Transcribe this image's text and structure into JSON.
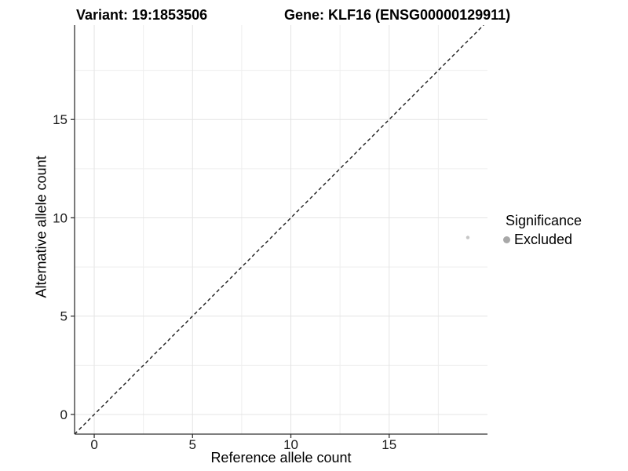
{
  "header": {
    "variant_title": "Variant: 19:1853506",
    "gene_title": "Gene: KLF16 (ENSG00000129911)"
  },
  "chart_data": {
    "type": "scatter",
    "xlabel": "Reference allele count",
    "ylabel": "Alternative allele count",
    "xlim": [
      -1,
      20
    ],
    "ylim": [
      -1,
      19.8
    ],
    "x_ticks": [
      0,
      5,
      10,
      15
    ],
    "y_ticks": [
      0,
      5,
      10,
      15
    ],
    "x_minor_ticks": [
      2.5,
      7.5,
      12.5,
      17.5
    ],
    "y_minor_ticks": [
      2.5,
      7.5,
      12.5,
      17.5
    ],
    "grid": true,
    "identity_line": {
      "style": "dashed",
      "from": [
        -1,
        -1
      ],
      "to": [
        20,
        20
      ]
    },
    "series": [
      {
        "name": "Excluded",
        "point_color": "#c6c6c6",
        "points": [
          {
            "x": 19,
            "y": 9
          }
        ]
      }
    ],
    "legend": {
      "title": "Significance",
      "position": "right",
      "items": [
        {
          "label": "Excluded",
          "color": "#a8a8a8"
        }
      ]
    }
  },
  "colors": {
    "axis_line": "#333333",
    "tick_mark": "#333333",
    "tick_label": "#1a1a1a",
    "grid_major": "#e4e4e4",
    "grid_minor": "#eeeeee",
    "identity_line": "#1a1a1a",
    "background": "#ffffff"
  }
}
